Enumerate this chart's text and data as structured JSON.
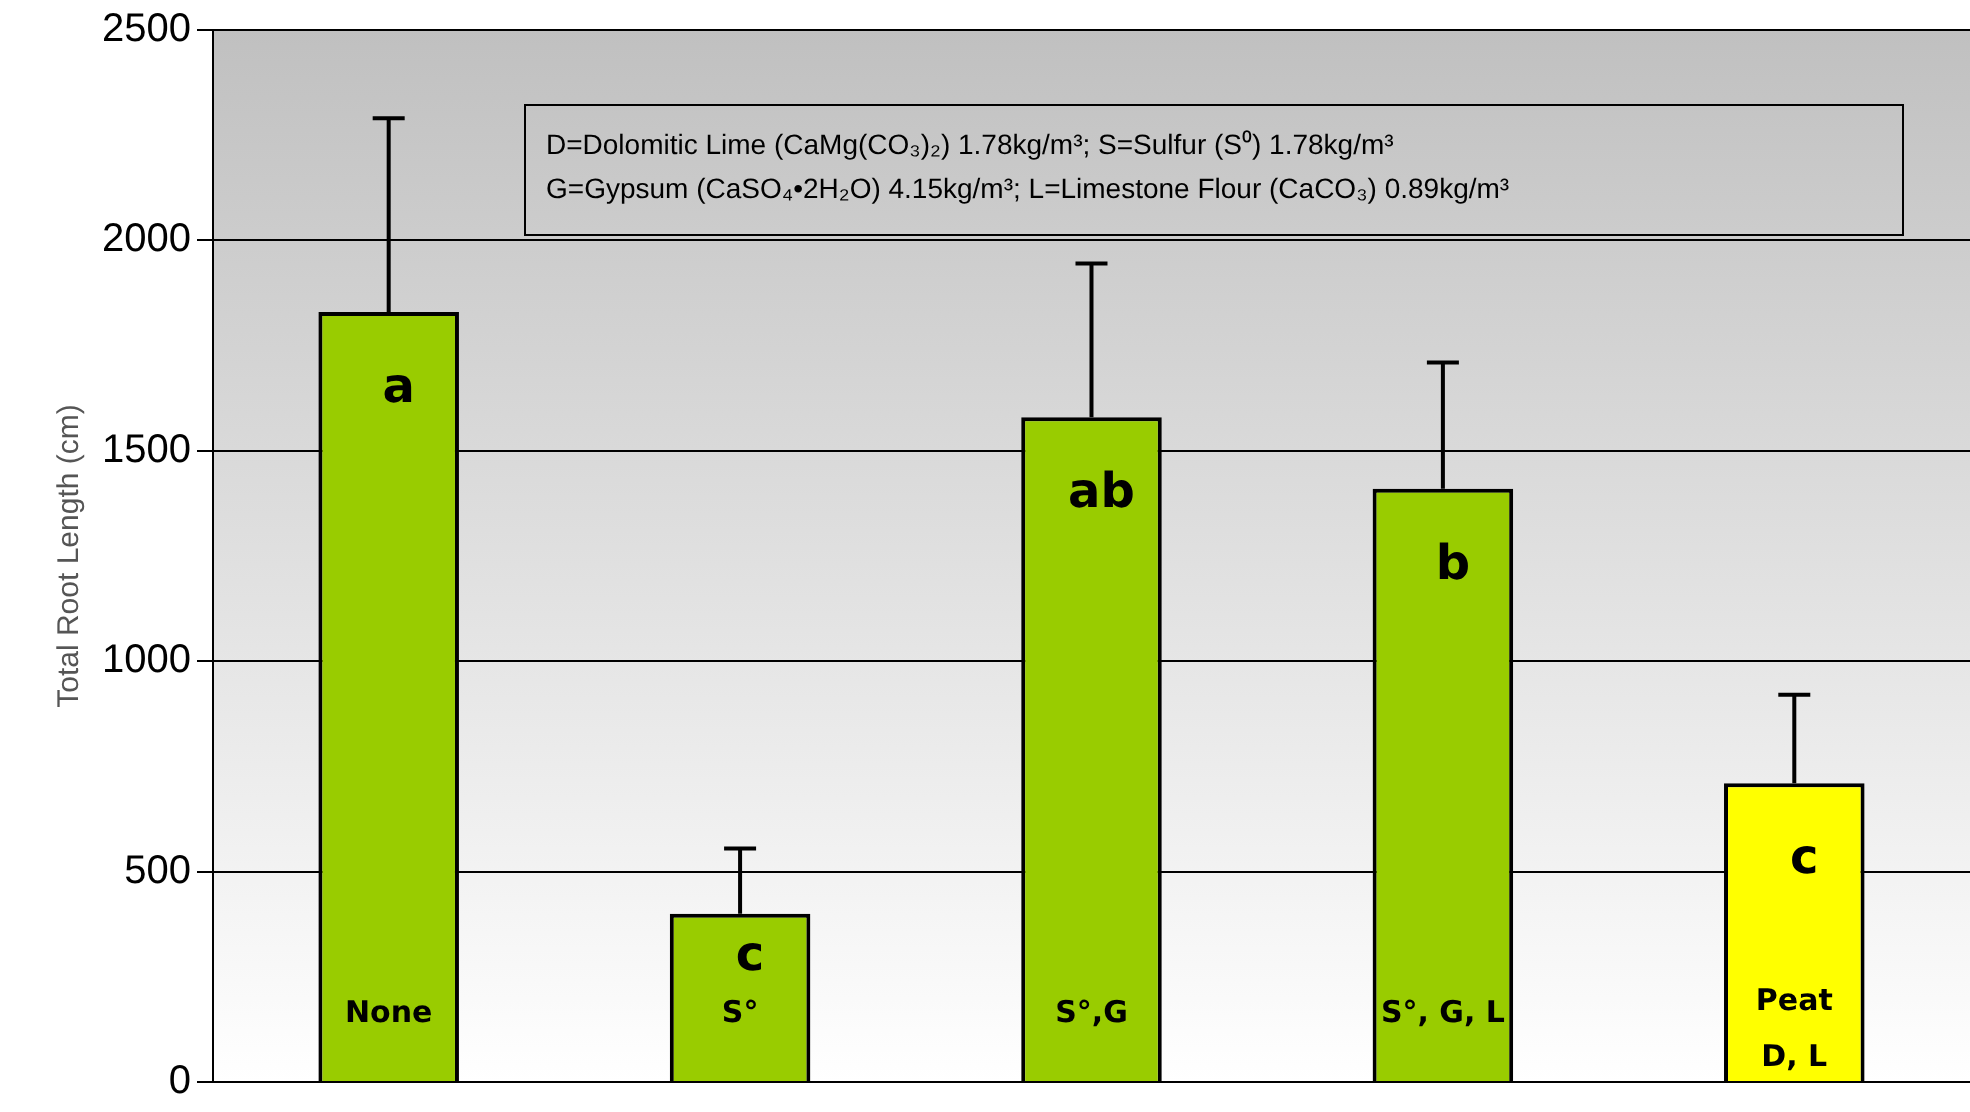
{
  "chart_data": {
    "type": "bar",
    "ylabel": "Total Root Length (cm)",
    "categories": [
      "None",
      "S°",
      "S°,G",
      "S°, G, L",
      "Peat\nD, L"
    ],
    "values": [
      1830,
      400,
      1580,
      1410,
      710
    ],
    "colors": [
      "#99cc00",
      "#99cc00",
      "#99cc00",
      "#99cc00",
      "#ffff00"
    ],
    "errors": [
      [
        1830,
        2290
      ],
      [
        400,
        555
      ],
      [
        1580,
        1945
      ],
      [
        1410,
        1710
      ],
      [
        710,
        920
      ]
    ],
    "ylim": [
      0,
      2500
    ],
    "yticks": [
      0,
      500,
      1000,
      1500,
      2000,
      2500
    ],
    "grid": "y",
    "legend": false,
    "annotations": [
      "D=Dolomitic Lime (CaMg(CO₃)₂) 1.78kg/m³; S=Sulfur (S⁰) 1.78kg/m³\nG=Gypsum (CaSO₄•2H₂O) 4.15kg/m³; L=Limestone Flour (CaCO₃) 0.89kg/m³",
      "a",
      "c",
      "ab",
      "b",
      "c"
    ]
  }
}
